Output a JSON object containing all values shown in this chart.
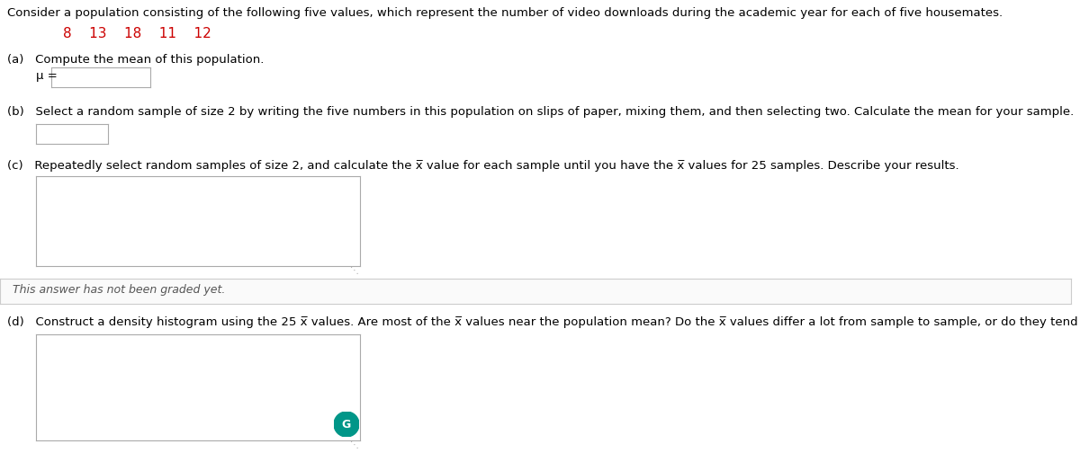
{
  "background_color": "#ffffff",
  "main_text": "Consider a population consisting of the following five values, which represent the number of video downloads during the academic year for each of five housemates.",
  "values_text": "8    13    18    11    12",
  "values_color": "#cc0000",
  "part_a_label": "(a)   Compute the mean of this population.",
  "part_a_mu": "μ =",
  "part_b_label": "(b)   Select a random sample of size 2 by writing the five numbers in this population on slips of paper, mixing them, and then selecting two. Calculate the mean for your sample.",
  "part_c_label": "(c)   Repeatedly select random samples of size 2, and calculate the x̅ value for each sample until you have the x̅ values for 25 samples. Describe your results.",
  "graded_text": "This answer has not been graded yet.",
  "part_d_label": "(d)   Construct a density histogram using the 25 x̅ values. Are most of the x̅ values near the population mean? Do the x̅ values differ a lot from sample to sample, or do they tend to be similar?",
  "circle_color": "#009688",
  "text_color": "#000000",
  "label_color": "#555555",
  "font_size": 9.5,
  "font_size_values": 11.0
}
